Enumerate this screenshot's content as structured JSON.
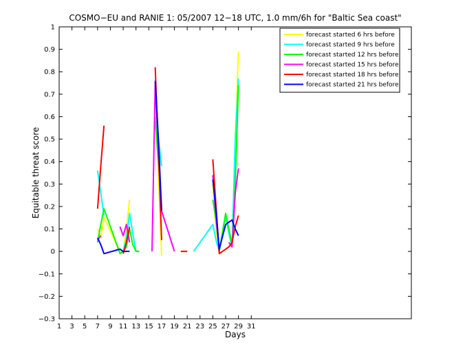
{
  "chart_data": {
    "type": "line",
    "title": "COSMO−EU and RANIE 1: 05/2007 12−18 UTC, 1.0 mm/6h for \"Baltic Sea coast\"",
    "xlabel": "Days",
    "ylabel": "Equitable threat score",
    "xlim": [
      1,
      56
    ],
    "ylim": [
      -0.3,
      1
    ],
    "x_ticks": [
      1,
      3,
      5,
      7,
      9,
      11,
      13,
      15,
      17,
      19,
      21,
      23,
      25,
      27,
      29,
      31
    ],
    "y_ticks": [
      -0.3,
      -0.2,
      -0.1,
      0,
      0.1,
      0.2,
      0.3,
      0.4,
      0.5,
      0.6,
      0.7,
      0.8,
      0.9,
      1
    ],
    "y_tick_labels": [
      "−0.3",
      "−0.2",
      "−0.1",
      "0",
      "0.1",
      "0.2",
      "0.3",
      "0.4",
      "0.5",
      "0.6",
      "0.7",
      "0.8",
      "0.9",
      "1"
    ],
    "legend_position": "top-right",
    "grid": false,
    "x": [
      7,
      7.5,
      8,
      10.5,
      11,
      11.5,
      12,
      12.5,
      13,
      13.5,
      14,
      15.5,
      16,
      16.5,
      17,
      19,
      20,
      20.5,
      21,
      22,
      25,
      25.5,
      26,
      27,
      27.5,
      28,
      28.5,
      29
    ],
    "series": [
      {
        "name": "forecast started 6 hrs before",
        "color": "#ffff00",
        "values": [
          0.1,
          0.06,
          0.15,
          0,
          0,
          0.1,
          0.23,
          null,
          0,
          0,
          null,
          null,
          0.7,
          0.35,
          -0.02,
          null,
          null,
          null,
          null,
          null,
          0.3,
          0.1,
          0,
          0.16,
          0.08,
          0.02,
          0.5,
          0.89
        ]
      },
      {
        "name": "forecast started 9 hrs before",
        "color": "#00ffff",
        "values": [
          0.36,
          0.26,
          0.16,
          null,
          0,
          0.06,
          0.17,
          0.08,
          0,
          0,
          null,
          null,
          0.6,
          0.5,
          0.38,
          null,
          null,
          null,
          null,
          0,
          0.12,
          0.05,
          0,
          0.16,
          0.08,
          0.02,
          0.5,
          0.77
        ]
      },
      {
        "name": "forecast started 12 hrs before",
        "color": "#00ff00",
        "values": [
          0.04,
          0.12,
          0.19,
          -0.01,
          0,
          0.02,
          0.1,
          0.03,
          0,
          0,
          null,
          null,
          0.58,
          0.4,
          0.2,
          null,
          null,
          null,
          null,
          null,
          0.23,
          0.14,
          0,
          0.17,
          0.1,
          0.03,
          0.3,
          0.74
        ]
      },
      {
        "name": "forecast started 15 hrs before",
        "color": "#ff00ff",
        "values": [
          0.05,
          0.07,
          null,
          0.11,
          0.07,
          0.12,
          0.04,
          null,
          null,
          null,
          null,
          0,
          0.75,
          0.45,
          0.18,
          0,
          null,
          null,
          null,
          null,
          0.34,
          0.15,
          0,
          null,
          0.04,
          0.02,
          0.26,
          0.37
        ]
      },
      {
        "name": "forecast started 18 hrs before",
        "color": "#ff0000",
        "values": [
          0.19,
          0.38,
          0.56,
          null,
          -0.01,
          0.04,
          0.11,
          null,
          null,
          null,
          null,
          null,
          0.82,
          0.45,
          0.05,
          null,
          0,
          0,
          0,
          null,
          0.41,
          0.2,
          -0.01,
          0.01,
          0.02,
          0.04,
          0.11,
          0.16
        ]
      },
      {
        "name": "forecast started 21 hrs before",
        "color": "#0000ff",
        "values": [
          0.06,
          0.03,
          -0.01,
          0.01,
          0,
          0,
          0,
          null,
          null,
          null,
          null,
          null,
          0.76,
          0.5,
          0.18,
          null,
          null,
          null,
          null,
          null,
          0.32,
          0.18,
          0.01,
          0.12,
          0.13,
          0.14,
          0.1,
          0.07
        ]
      }
    ]
  }
}
